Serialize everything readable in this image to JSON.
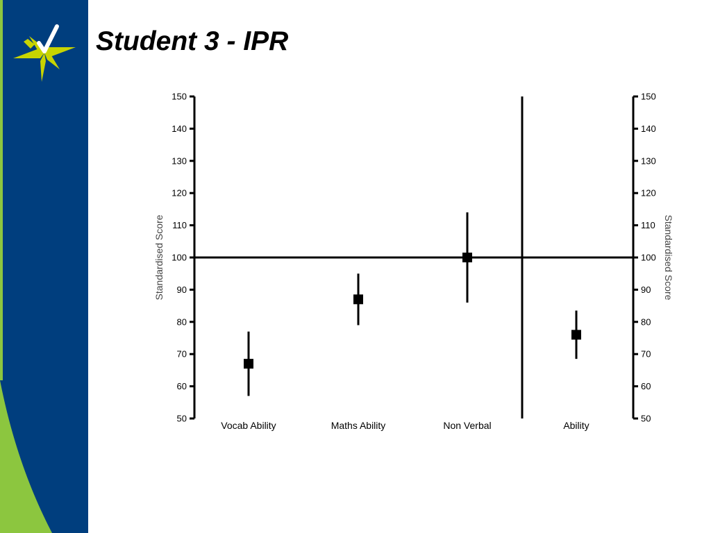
{
  "slide": {
    "title": "Student 3 - IPR"
  },
  "colors": {
    "sidebar_blue": "#003E7E",
    "sidebar_green": "#8CC63F",
    "logo_star": "#C8D400"
  },
  "logo": {
    "icon": "star-check-logo"
  },
  "chart_data": {
    "type": "scatter",
    "error_bars": true,
    "categories": [
      "Vocab Ability",
      "Maths Ability",
      "Non Verbal",
      "Ability"
    ],
    "series": [
      {
        "values": [
          67,
          87,
          100,
          76
        ],
        "lower": [
          57,
          79,
          86,
          68.5
        ],
        "upper": [
          77,
          95,
          114,
          83.5
        ]
      }
    ],
    "reference_line": 100,
    "separator_after_category": 3,
    "ylabel": "Standardised Score",
    "ylabel_right": "Standardised Score",
    "ylim": [
      50,
      150
    ],
    "yticks": [
      50,
      60,
      70,
      80,
      90,
      100,
      110,
      120,
      130,
      140,
      150
    ],
    "grid": false,
    "legend": "none"
  }
}
